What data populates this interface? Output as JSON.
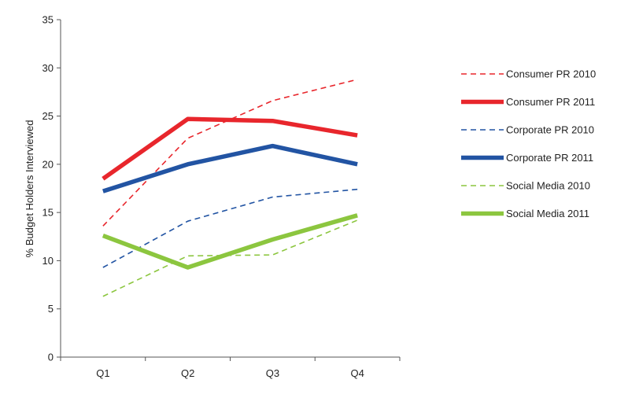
{
  "chart_data": {
    "type": "line",
    "title": "",
    "xlabel": "",
    "ylabel": "% Budget Holders Interviewed",
    "categories": [
      "Q1",
      "Q2",
      "Q3",
      "Q4"
    ],
    "ylim": [
      0,
      35
    ],
    "yticks": [
      0,
      5,
      10,
      15,
      20,
      25,
      30,
      35
    ],
    "grid": false,
    "legend_position": "right",
    "series": [
      {
        "name": "Consumer PR 2010",
        "values": [
          13.6,
          22.7,
          26.6,
          28.8
        ],
        "color": "#e8262c",
        "style": "dashed"
      },
      {
        "name": "Consumer PR 2011",
        "values": [
          18.5,
          24.7,
          24.5,
          23.0
        ],
        "color": "#e8262c",
        "style": "solid"
      },
      {
        "name": "Corporate PR 2010",
        "values": [
          9.3,
          14.1,
          16.6,
          17.4
        ],
        "color": "#2254a3",
        "style": "dashed"
      },
      {
        "name": "Corporate PR 2011",
        "values": [
          17.2,
          20.0,
          21.9,
          20.0
        ],
        "color": "#2254a3",
        "style": "solid"
      },
      {
        "name": "Social Media 2010",
        "values": [
          6.3,
          10.5,
          10.6,
          14.2
        ],
        "color": "#8cc63f",
        "style": "dashed"
      },
      {
        "name": "Social Media 2011",
        "values": [
          12.6,
          9.3,
          12.2,
          14.7
        ],
        "color": "#8cc63f",
        "style": "solid"
      }
    ]
  }
}
